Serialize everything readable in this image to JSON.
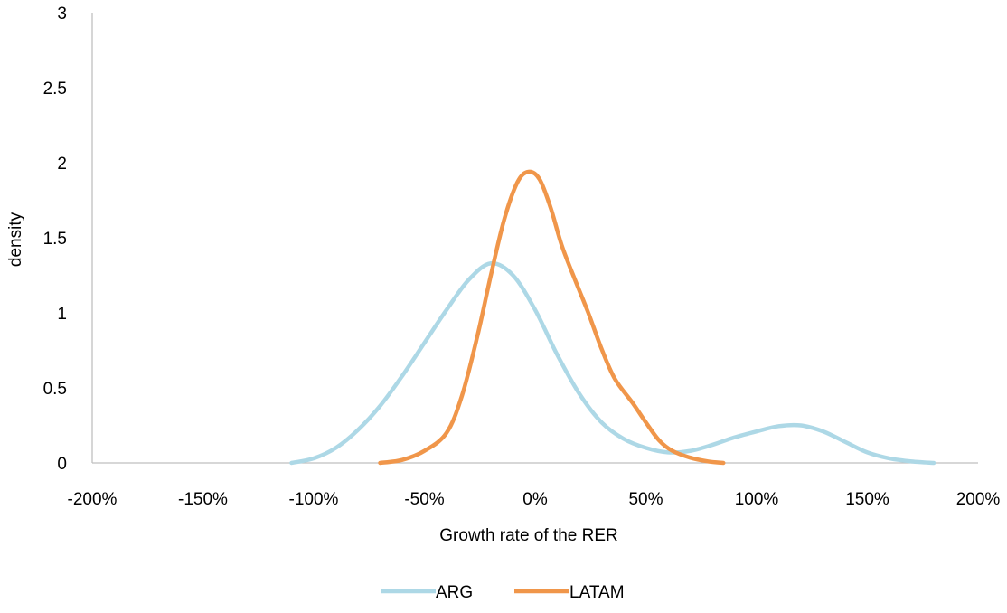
{
  "chart_data": {
    "type": "line",
    "title": "",
    "xlabel": "Growth rate of the RER",
    "ylabel": "density",
    "xlim": [
      -2,
      2
    ],
    "ylim": [
      0,
      3
    ],
    "x_ticks": [
      {
        "value": -2.0,
        "label": "-200%"
      },
      {
        "value": -1.5,
        "label": "-150%"
      },
      {
        "value": -1.0,
        "label": "-100%"
      },
      {
        "value": -0.5,
        "label": "-50%"
      },
      {
        "value": 0.0,
        "label": "0%"
      },
      {
        "value": 0.5,
        "label": "50%"
      },
      {
        "value": 1.0,
        "label": "100%"
      },
      {
        "value": 1.5,
        "label": "150%"
      },
      {
        "value": 2.0,
        "label": "200%"
      }
    ],
    "y_ticks": [
      {
        "value": 0,
        "label": "0"
      },
      {
        "value": 0.5,
        "label": "0.5"
      },
      {
        "value": 1,
        "label": "1"
      },
      {
        "value": 1.5,
        "label": "1.5"
      },
      {
        "value": 2,
        "label": "2"
      },
      {
        "value": 2.5,
        "label": "2.5"
      },
      {
        "value": 3,
        "label": "3"
      }
    ],
    "grid": false,
    "legend_position": "bottom",
    "series": [
      {
        "name": "ARG",
        "color": "#add8e6",
        "points": [
          [
            -1.1,
            0.0
          ],
          [
            -1.0,
            0.03
          ],
          [
            -0.9,
            0.1
          ],
          [
            -0.8,
            0.22
          ],
          [
            -0.7,
            0.38
          ],
          [
            -0.6,
            0.58
          ],
          [
            -0.5,
            0.8
          ],
          [
            -0.4,
            1.02
          ],
          [
            -0.3,
            1.22
          ],
          [
            -0.2,
            1.33
          ],
          [
            -0.1,
            1.25
          ],
          [
            0.0,
            1.02
          ],
          [
            0.1,
            0.72
          ],
          [
            0.2,
            0.46
          ],
          [
            0.3,
            0.27
          ],
          [
            0.4,
            0.16
          ],
          [
            0.5,
            0.1
          ],
          [
            0.6,
            0.07
          ],
          [
            0.7,
            0.08
          ],
          [
            0.8,
            0.12
          ],
          [
            0.9,
            0.17
          ],
          [
            1.0,
            0.21
          ],
          [
            1.1,
            0.245
          ],
          [
            1.2,
            0.25
          ],
          [
            1.3,
            0.21
          ],
          [
            1.4,
            0.14
          ],
          [
            1.5,
            0.07
          ],
          [
            1.6,
            0.03
          ],
          [
            1.7,
            0.01
          ],
          [
            1.8,
            0.0
          ]
        ]
      },
      {
        "name": "LATAM",
        "color": "#f0964a",
        "points": [
          [
            -0.7,
            0.0
          ],
          [
            -0.6,
            0.02
          ],
          [
            -0.5,
            0.08
          ],
          [
            -0.4,
            0.2
          ],
          [
            -0.33,
            0.45
          ],
          [
            -0.26,
            0.85
          ],
          [
            -0.2,
            1.25
          ],
          [
            -0.14,
            1.62
          ],
          [
            -0.08,
            1.87
          ],
          [
            -0.03,
            1.94
          ],
          [
            0.02,
            1.89
          ],
          [
            0.07,
            1.7
          ],
          [
            0.12,
            1.45
          ],
          [
            0.18,
            1.22
          ],
          [
            0.24,
            1.0
          ],
          [
            0.3,
            0.76
          ],
          [
            0.36,
            0.56
          ],
          [
            0.44,
            0.4
          ],
          [
            0.5,
            0.27
          ],
          [
            0.56,
            0.15
          ],
          [
            0.62,
            0.08
          ],
          [
            0.7,
            0.035
          ],
          [
            0.78,
            0.01
          ],
          [
            0.85,
            0.0
          ]
        ]
      }
    ]
  }
}
